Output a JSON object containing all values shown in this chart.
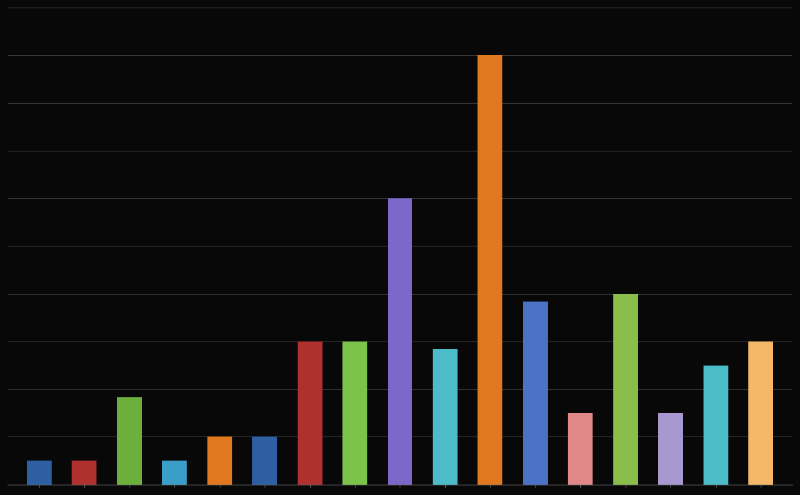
{
  "values": [
    1.5,
    1.5,
    5.5,
    1.5,
    3.0,
    3.0,
    9.0,
    9.0,
    18.0,
    8.5,
    27.0,
    11.5,
    4.5,
    12.0,
    4.5,
    7.5,
    9.0
  ],
  "colors": [
    "#2E5FA3",
    "#B03030",
    "#6DAF3B",
    "#3B9EC8",
    "#E07820",
    "#2E5FA3",
    "#B03030",
    "#7BC34A",
    "#7B68C8",
    "#4BBCC8",
    "#E07820",
    "#4B72C4",
    "#E08888",
    "#8BBD4A",
    "#A898D0",
    "#4BBCC8",
    "#F4B868"
  ],
  "background_color": "#080808",
  "grid_color": "#484848",
  "ylim_max": 30,
  "num_yticks": 11,
  "bar_width": 0.55,
  "spine_color": "#666666"
}
